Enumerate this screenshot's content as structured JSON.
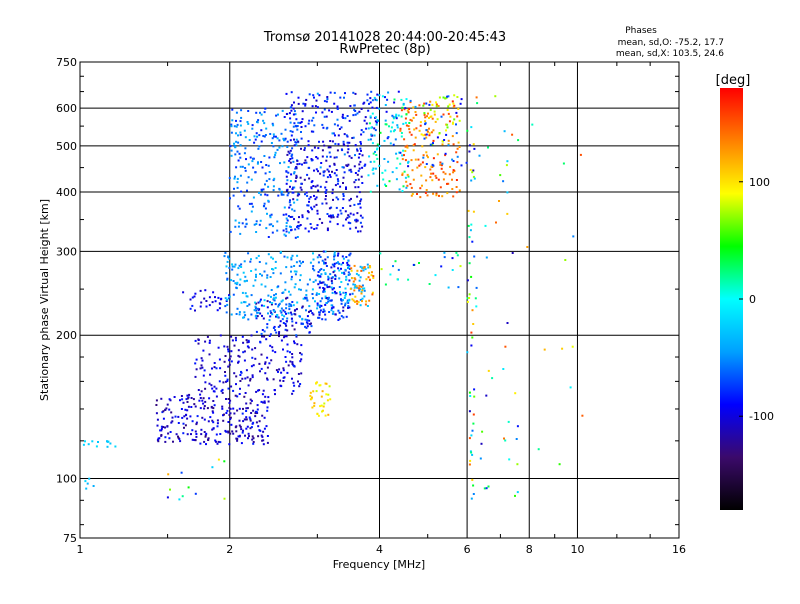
{
  "chart_data": {
    "type": "scatter",
    "title": "Tromsø 20141028 20:44:00-20:45:43",
    "subtitle": "RwPretec (8p)",
    "xlabel": "Frequency [MHz]",
    "ylabel": "Stationary phase Virtual Height [km]",
    "x_scale": "log",
    "y_scale": "log",
    "xlim": [
      1,
      16
    ],
    "ylim": [
      75,
      750
    ],
    "x_ticks": [
      1,
      2,
      4,
      6,
      8,
      10,
      16
    ],
    "y_ticks": [
      75,
      100,
      200,
      300,
      400,
      500,
      600,
      750
    ],
    "grid": true,
    "stats": {
      "title": "Phases",
      "line1": "mean, sd,O: -75.2, 17.7",
      "line2": "mean, sd,X: 103.5, 24.6"
    },
    "colorbar": {
      "label": "[deg]",
      "range": [
        -180,
        180
      ],
      "ticks": [
        100,
        0,
        -100
      ],
      "colors": [
        "#000000",
        "#3b0a6b",
        "#0000ff",
        "#00a0ff",
        "#00ffff",
        "#00ff00",
        "#ffff00",
        "#ff8000",
        "#ff0000"
      ]
    },
    "clusters": [
      {
        "f": [
          1.0,
          1.18
        ],
        "h": [
          116,
          120
        ],
        "phase": [
          -30,
          -15
        ],
        "n": 12
      },
      {
        "f": [
          1.02,
          1.08
        ],
        "h": [
          95,
          104
        ],
        "phase": [
          -40,
          -15
        ],
        "n": 5
      },
      {
        "f": [
          1.42,
          2.4
        ],
        "h": [
          118,
          150
        ],
        "phase": [
          -130,
          -80
        ],
        "n": 260
      },
      {
        "f": [
          1.7,
          2.8
        ],
        "h": [
          150,
          200
        ],
        "phase": [
          -125,
          -80
        ],
        "n": 200
      },
      {
        "f": [
          2.25,
          2.95
        ],
        "h": [
          200,
          240
        ],
        "phase": [
          -125,
          -60
        ],
        "n": 100
      },
      {
        "f": [
          1.6,
          2.0
        ],
        "h": [
          225,
          250
        ],
        "phase": [
          -115,
          -80
        ],
        "n": 30
      },
      {
        "f": [
          1.95,
          3.3
        ],
        "h": [
          215,
          300
        ],
        "phase": [
          -70,
          -20
        ],
        "n": 260
      },
      {
        "f": [
          3.0,
          3.5
        ],
        "h": [
          215,
          300
        ],
        "phase": [
          -110,
          -60
        ],
        "n": 110
      },
      {
        "f": [
          3.3,
          3.8
        ],
        "h": [
          230,
          290
        ],
        "phase": [
          -60,
          -15
        ],
        "n": 60
      },
      {
        "f": [
          3.5,
          3.9
        ],
        "h": [
          230,
          280
        ],
        "phase": [
          100,
          150
        ],
        "n": 45
      },
      {
        "f": [
          2.9,
          3.2
        ],
        "h": [
          135,
          160
        ],
        "phase": [
          80,
          120
        ],
        "n": 35
      },
      {
        "f": [
          2.0,
          2.75
        ],
        "h": [
          320,
          600
        ],
        "phase": [
          -85,
          -35
        ],
        "n": 260
      },
      {
        "f": [
          2.6,
          3.7
        ],
        "h": [
          330,
          520
        ],
        "phase": [
          -120,
          -70
        ],
        "n": 280
      },
      {
        "f": [
          2.6,
          4.0
        ],
        "h": [
          520,
          650
        ],
        "phase": [
          -110,
          -60
        ],
        "n": 120
      },
      {
        "f": [
          3.8,
          4.6
        ],
        "h": [
          400,
          640
        ],
        "phase": [
          -40,
          40
        ],
        "n": 90
      },
      {
        "f": [
          4.4,
          5.8
        ],
        "h": [
          390,
          620
        ],
        "phase": [
          110,
          170
        ],
        "n": 150
      },
      {
        "f": [
          4.8,
          5.8
        ],
        "h": [
          500,
          640
        ],
        "phase": [
          60,
          110
        ],
        "n": 40
      },
      {
        "f": [
          3.0,
          6.0
        ],
        "h": [
          450,
          650
        ],
        "phase": [
          -100,
          -40
        ],
        "n": 80
      },
      {
        "f": [
          6.0,
          6.2
        ],
        "h": [
          90,
          600
        ],
        "phase": [
          -120,
          170
        ],
        "n": 50
      },
      {
        "f": [
          6.2,
          7.6
        ],
        "h": [
          90,
          650
        ],
        "phase": [
          -120,
          170
        ],
        "n": 45
      },
      {
        "f": [
          4.0,
          6.0
        ],
        "h": [
          250,
          300
        ],
        "phase": [
          -100,
          100
        ],
        "n": 25
      },
      {
        "f": [
          7.5,
          10.5
        ],
        "h": [
          100,
          620
        ],
        "phase": [
          -120,
          170
        ],
        "n": 14
      },
      {
        "f": [
          1.5,
          2.0
        ],
        "h": [
          90,
          110
        ],
        "phase": [
          -120,
          150
        ],
        "n": 12
      }
    ]
  }
}
